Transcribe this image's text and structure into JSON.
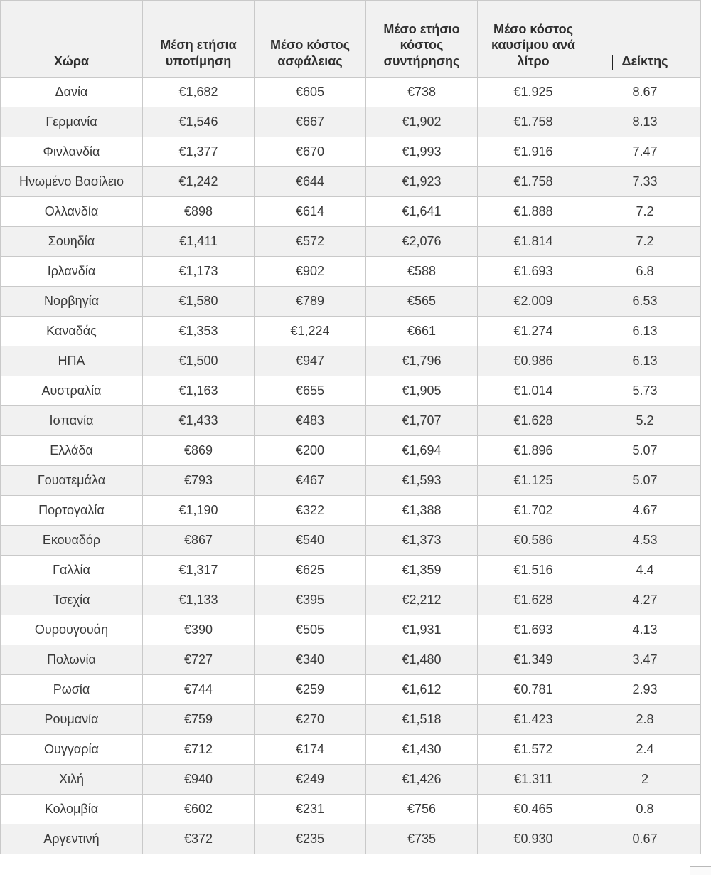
{
  "chart_data": {
    "type": "table",
    "title": "",
    "columns": [
      "Χώρα",
      "Μέση ετήσια υποτίμηση",
      "Μέσο κόστος ασφάλειας",
      "Μέσο ετήσιο κόστος συντήρησης",
      "Μέσο κόστος καυσίμου ανά λίτρο",
      "Δείκτης"
    ],
    "rows": [
      [
        "Δανία",
        "€1,682",
        "€605",
        "€738",
        "€1.925",
        "8.67"
      ],
      [
        "Γερμανία",
        "€1,546",
        "€667",
        "€1,902",
        "€1.758",
        "8.13"
      ],
      [
        "Φινλανδία",
        "€1,377",
        "€670",
        "€1,993",
        "€1.916",
        "7.47"
      ],
      [
        "Ηνωμένο Βασίλειο",
        "€1,242",
        "€644",
        "€1,923",
        "€1.758",
        "7.33"
      ],
      [
        "Ολλανδία",
        "€898",
        "€614",
        "€1,641",
        "€1.888",
        "7.2"
      ],
      [
        "Σουηδία",
        "€1,411",
        "€572",
        "€2,076",
        "€1.814",
        "7.2"
      ],
      [
        "Ιρλανδία",
        "€1,173",
        "€902",
        "€588",
        "€1.693",
        "6.8"
      ],
      [
        "Νορβηγία",
        "€1,580",
        "€789",
        "€565",
        "€2.009",
        "6.53"
      ],
      [
        "Καναδάς",
        "€1,353",
        "€1,224",
        "€661",
        "€1.274",
        "6.13"
      ],
      [
        "ΗΠΑ",
        "€1,500",
        "€947",
        "€1,796",
        "€0.986",
        "6.13"
      ],
      [
        "Αυστραλία",
        "€1,163",
        "€655",
        "€1,905",
        "€1.014",
        "5.73"
      ],
      [
        "Ισπανία",
        "€1,433",
        "€483",
        "€1,707",
        "€1.628",
        "5.2"
      ],
      [
        "Ελλάδα",
        "€869",
        "€200",
        "€1,694",
        "€1.896",
        "5.07"
      ],
      [
        "Γουατεμάλα",
        "€793",
        "€467",
        "€1,593",
        "€1.125",
        "5.07"
      ],
      [
        "Πορτογαλία",
        "€1,190",
        "€322",
        "€1,388",
        "€1.702",
        "4.67"
      ],
      [
        "Εκουαδόρ",
        "€867",
        "€540",
        "€1,373",
        "€0.586",
        "4.53"
      ],
      [
        "Γαλλία",
        "€1,317",
        "€625",
        "€1,359",
        "€1.516",
        "4.4"
      ],
      [
        "Τσεχία",
        "€1,133",
        "€395",
        "€2,212",
        "€1.628",
        "4.27"
      ],
      [
        "Ουρουγουάη",
        "€390",
        "€505",
        "€1,931",
        "€1.693",
        "4.13"
      ],
      [
        "Πολωνία",
        "€727",
        "€340",
        "€1,480",
        "€1.349",
        "3.47"
      ],
      [
        "Ρωσία",
        "€744",
        "€259",
        "€1,612",
        "€0.781",
        "2.93"
      ],
      [
        "Ρουμανία",
        "€759",
        "€270",
        "€1,518",
        "€1.423",
        "2.8"
      ],
      [
        "Ουγγαρία",
        "€712",
        "€174",
        "€1,430",
        "€1.572",
        "2.4"
      ],
      [
        "Χιλή",
        "€940",
        "€249",
        "€1,426",
        "€1.311",
        "2"
      ],
      [
        "Κολομβία",
        "€602",
        "€231",
        "€756",
        "€0.465",
        "0.8"
      ],
      [
        "Αργεντινή",
        "€372",
        "€235",
        "€735",
        "€0.930",
        "0.67"
      ]
    ],
    "layout": {
      "header_align": "center-bottom",
      "cell_align": "center",
      "zebra_striping": true,
      "grid": true
    }
  },
  "colors": {
    "header_bg": "#f1f1f1",
    "row_alt_bg": "#f1f1f1",
    "row_bg": "#ffffff",
    "border": "#c9c9c9",
    "text": "#3a3a3a"
  }
}
